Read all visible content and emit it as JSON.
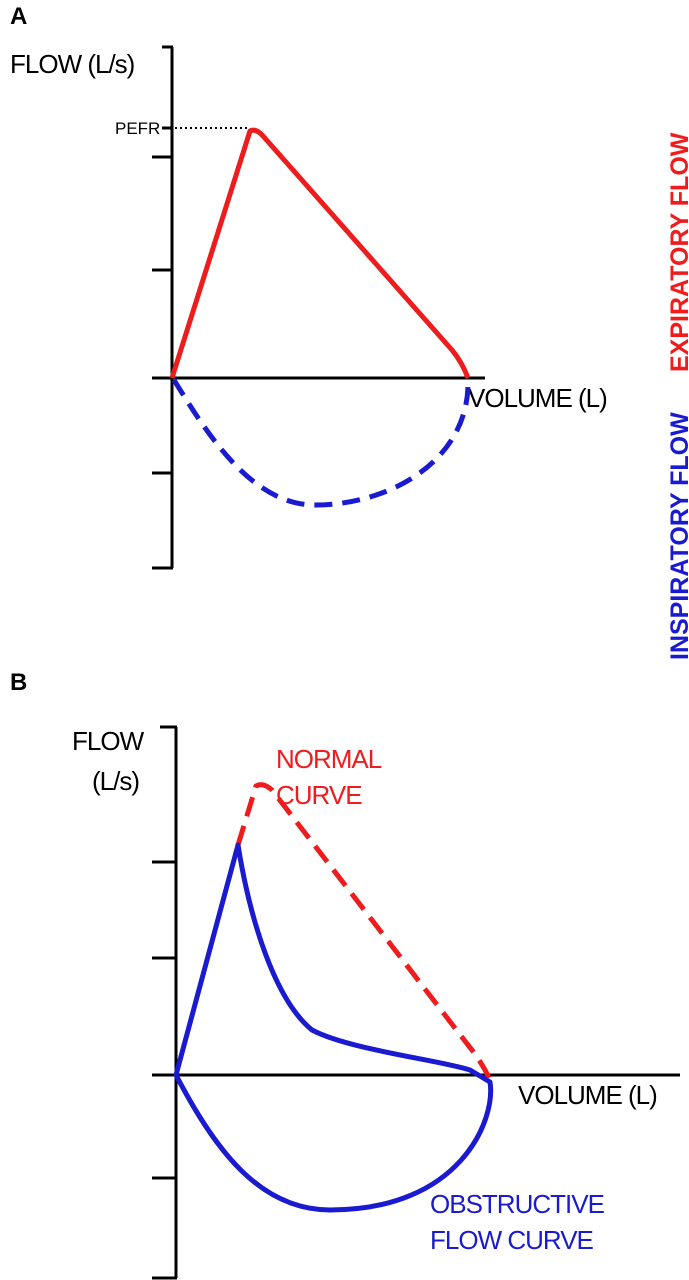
{
  "panels": [
    {
      "label": "A",
      "y_axis_label": "FLOW (L/s)",
      "peak_label": "PEFR",
      "x_axis_label": "VOLUME (L)",
      "expiratory_label": "EXPIRATORY FLOW",
      "inspiratory_label": "INSPIRATORY FLOW"
    },
    {
      "label": "B",
      "y_axis_label": [
        "FLOW",
        "(L/s)"
      ],
      "x_axis_label": "VOLUME (L)",
      "normal_label": [
        "NORMAL",
        "CURVE"
      ],
      "obstructive_label": [
        "OBSTRUCTIVE",
        "FLOW CURVE"
      ]
    }
  ]
}
